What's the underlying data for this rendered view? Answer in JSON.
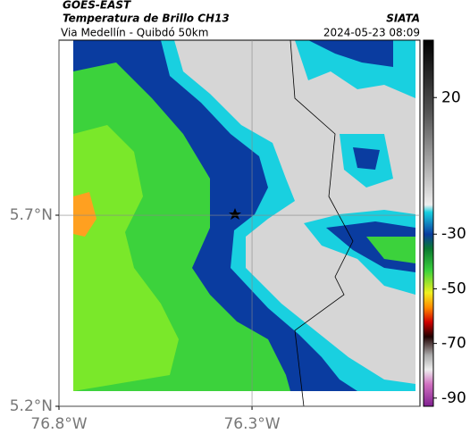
{
  "header": {
    "satellite": "GOES-EAST",
    "product": "Temperatura de Brillo CH13",
    "source": "SIATA",
    "route": "Via Medellín - Quibdó 50km",
    "timestamp": "2024-05-23 08:09"
  },
  "map": {
    "xlim": [
      -76.8,
      -75.865
    ],
    "ylim": [
      5.2,
      6.158
    ],
    "xticks": [
      {
        "value": -76.8,
        "label": "76.8°W"
      },
      {
        "value": -76.3,
        "label": "76.3°W"
      }
    ],
    "yticks": [
      {
        "value": 5.2,
        "label": "5.2°N"
      },
      {
        "value": 5.7,
        "label": "5.7°N"
      }
    ],
    "grid": true
  },
  "colorbar": {
    "range": [
      -93,
      41
    ],
    "ticks": [
      20,
      -30,
      -50,
      -70,
      -90
    ]
  }
}
